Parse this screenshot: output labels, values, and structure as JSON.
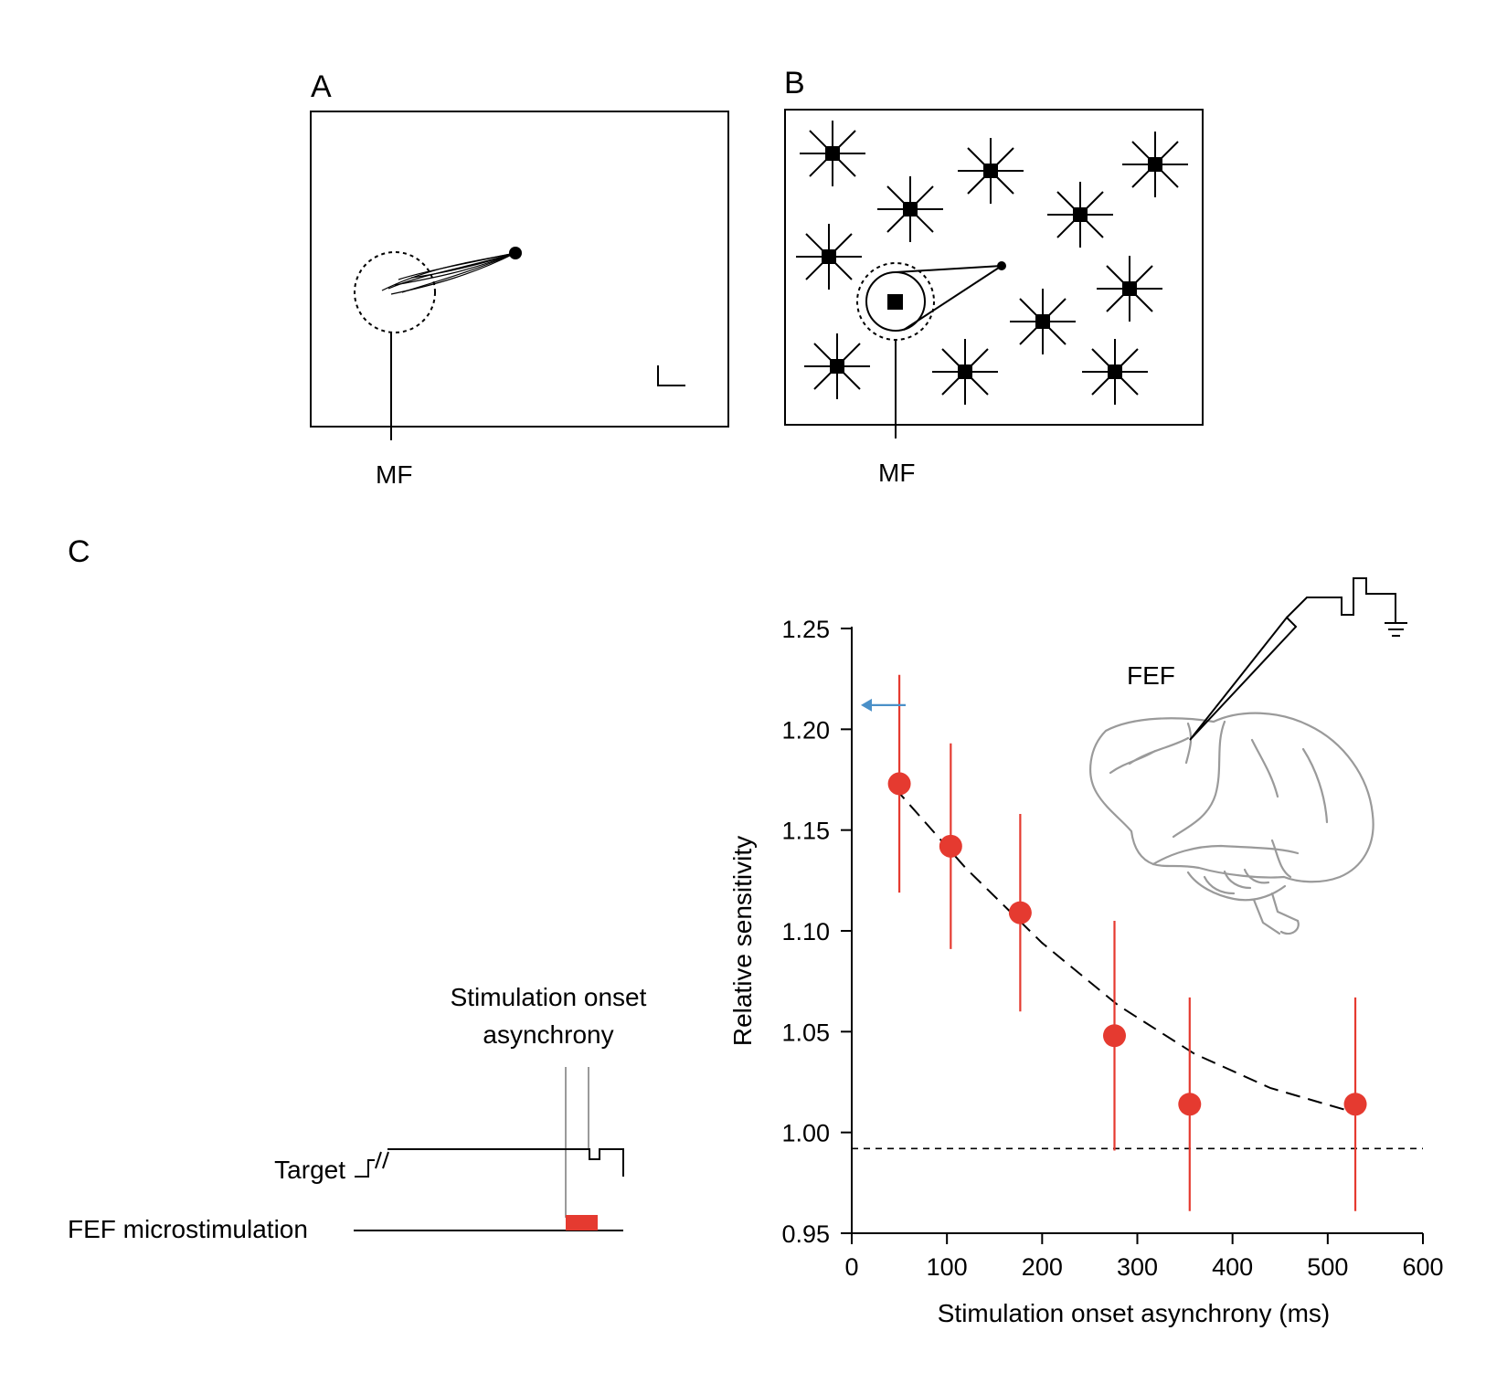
{
  "panels": {
    "a": {
      "letter": "A",
      "mf_label": "MF"
    },
    "b": {
      "letter": "B",
      "mf_label": "MF"
    },
    "c": {
      "letter": "C"
    }
  },
  "timing": {
    "soa_label_line1": "Stimulation onset",
    "soa_label_line2": "asynchrony",
    "target_label": "Target",
    "stim_label": "FEF microstimulation"
  },
  "brain": {
    "label": "FEF"
  },
  "colors": {
    "data": "#e53a30",
    "arrow": "#4a90c8",
    "brain": "#9a9a9a"
  },
  "chart_data": {
    "type": "scatter",
    "title": "",
    "xlabel": "Stimulation onset asynchrony (ms)",
    "ylabel": "Relative sensitivity",
    "xlim": [
      0,
      600
    ],
    "ylim": [
      0.95,
      1.25
    ],
    "xticks": [
      "0",
      "100",
      "200",
      "300",
      "400",
      "500",
      "600"
    ],
    "yticks": [
      "0.95",
      "1.00",
      "1.05",
      "1.10",
      "1.15",
      "1.20",
      "1.25"
    ],
    "points": [
      {
        "x": 50,
        "y": 1.173,
        "err_low": 1.119,
        "err_high": 1.227
      },
      {
        "x": 104,
        "y": 1.142,
        "err_low": 1.091,
        "err_high": 1.193
      },
      {
        "x": 177,
        "y": 1.109,
        "err_low": 1.06,
        "err_high": 1.158
      },
      {
        "x": 276,
        "y": 1.048,
        "err_low": 0.991,
        "err_high": 1.105
      },
      {
        "x": 355,
        "y": 1.014,
        "err_low": 0.961,
        "err_high": 1.067
      },
      {
        "x": 529,
        "y": 1.014,
        "err_low": 0.961,
        "err_high": 1.067
      }
    ],
    "fit": {
      "style": "dashed",
      "x": [
        45,
        120,
        200,
        280,
        360,
        440,
        520
      ],
      "y": [
        1.171,
        1.131,
        1.094,
        1.063,
        1.039,
        1.022,
        1.011
      ]
    },
    "baseline": {
      "y": 0.992,
      "style": "dashed"
    },
    "reference_arrow": {
      "y": 1.212,
      "direction": "left"
    }
  }
}
